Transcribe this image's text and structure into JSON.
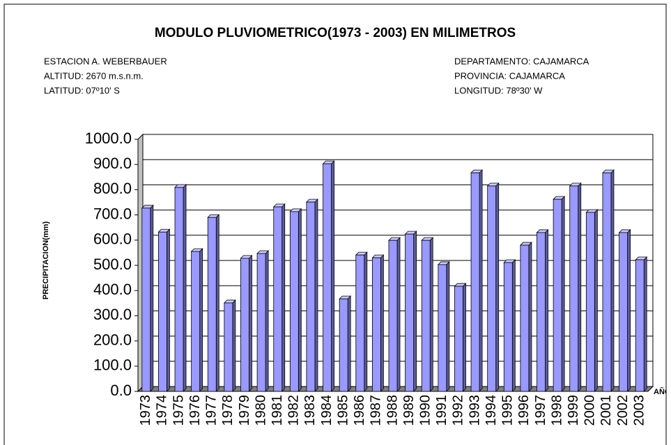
{
  "chart_data": {
    "type": "bar",
    "title": "MODULO PLUVIOMETRICO(1973 - 2003) EN MILIMETROS",
    "info_left": [
      "ESTACION A. WEBERBAUER",
      "ALTITUD: 2670 m.s.n.m.",
      "LATITUD: 07º10' S"
    ],
    "info_right": [
      "DEPARTAMENTO: CAJAMARCA",
      "PROVINCIA: CAJAMARCA",
      "LONGITUD: 78º30' W"
    ],
    "y_label": "PRECIPITACION(mm)",
    "x_label": "AÑOS",
    "categories": [
      "1973",
      "1974",
      "1975",
      "1976",
      "1977",
      "1978",
      "1979",
      "1980",
      "1981",
      "1982",
      "1983",
      "1984",
      "1985",
      "1986",
      "1987",
      "1988",
      "1989",
      "1990",
      "1991",
      "1992",
      "1993",
      "1994",
      "1995",
      "1996",
      "1997",
      "1998",
      "1999",
      "2000",
      "2001",
      "2002",
      "2003"
    ],
    "values": [
      727,
      632,
      809,
      555,
      690,
      351,
      528,
      547,
      732,
      713,
      751,
      903,
      367,
      541,
      530,
      599,
      624,
      599,
      503,
      417,
      867,
      815,
      511,
      580,
      630,
      762,
      815,
      710,
      867,
      630,
      522
    ],
    "color": "#9999ff",
    "ylim": [
      0,
      1000
    ],
    "yticks": [
      {
        "value": 0,
        "label": "0.0"
      },
      {
        "value": 100,
        "label": "100.0"
      },
      {
        "value": 200,
        "label": "200.0"
      },
      {
        "value": 300,
        "label": "300.0"
      },
      {
        "value": 400,
        "label": "400.0"
      },
      {
        "value": 500,
        "label": "500.0"
      },
      {
        "value": 600,
        "label": "600.0"
      },
      {
        "value": 700,
        "label": "700.0"
      },
      {
        "value": 800,
        "label": "800.0"
      },
      {
        "value": 900,
        "label": "900.0"
      },
      {
        "value": 1000,
        "label": "1000.0"
      }
    ],
    "grid": true
  }
}
